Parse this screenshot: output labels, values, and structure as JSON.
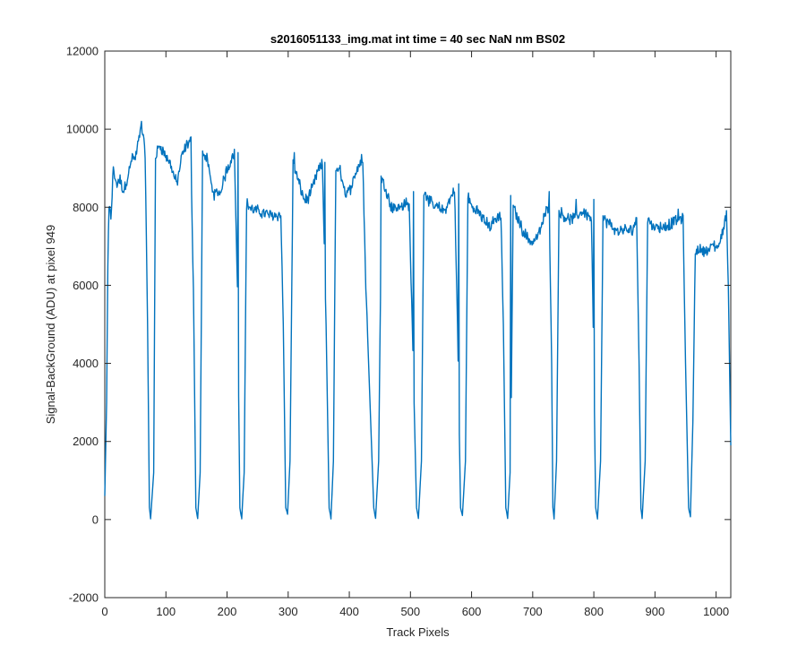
{
  "chart_data": {
    "type": "line",
    "title": "s2016051133_img.mat int time = 40 sec  NaN nm BS02",
    "xlabel": "Track Pixels",
    "ylabel": "Signal-BackGround (ADU) at pixel 949",
    "xlim": [
      0,
      1024
    ],
    "ylim": [
      -2000,
      12000
    ],
    "xticks": [
      0,
      100,
      200,
      300,
      400,
      500,
      600,
      700,
      800,
      900,
      1000
    ],
    "yticks": [
      -2000,
      0,
      2000,
      4000,
      6000,
      8000,
      10000,
      12000
    ],
    "grid": false,
    "line_color": "#0072BD",
    "segments": [
      {
        "start": 0,
        "end": 75,
        "levels": [
          [
            0,
            600
          ],
          [
            3,
            3000
          ],
          [
            5,
            6500
          ],
          [
            7,
            8000
          ],
          [
            10,
            7700
          ],
          [
            14,
            9000
          ],
          [
            18,
            8600
          ],
          [
            25,
            8700
          ],
          [
            30,
            8400
          ],
          [
            38,
            8800
          ],
          [
            45,
            9300
          ],
          [
            50,
            9200
          ],
          [
            55,
            9700
          ],
          [
            60,
            10100
          ],
          [
            66,
            9400
          ],
          [
            70,
            5000
          ],
          [
            73,
            300
          ],
          [
            75,
            30
          ]
        ]
      },
      {
        "start": 75,
        "end": 152,
        "levels": [
          [
            75,
            30
          ],
          [
            80,
            1200
          ],
          [
            83,
            9300
          ],
          [
            90,
            9600
          ],
          [
            100,
            9300
          ],
          [
            108,
            9100
          ],
          [
            113,
            8800
          ],
          [
            118,
            8600
          ],
          [
            126,
            9300
          ],
          [
            134,
            9600
          ],
          [
            140,
            9700
          ],
          [
            145,
            6000
          ],
          [
            149,
            300
          ],
          [
            152,
            30
          ]
        ]
      },
      {
        "start": 152,
        "end": 224,
        "levels": [
          [
            152,
            30
          ],
          [
            156,
            1200
          ],
          [
            160,
            9400
          ],
          [
            168,
            9200
          ],
          [
            174,
            8600
          ],
          [
            180,
            8300
          ],
          [
            190,
            8400
          ],
          [
            198,
            8900
          ],
          [
            206,
            9200
          ],
          [
            212,
            9400
          ],
          [
            217,
            6000
          ],
          [
            221,
            300
          ],
          [
            224,
            30
          ]
        ]
      },
      {
        "start": 224,
        "end": 299,
        "levels": [
          [
            224,
            30
          ],
          [
            228,
            1200
          ],
          [
            232,
            8100
          ],
          [
            240,
            7950
          ],
          [
            250,
            7900
          ],
          [
            260,
            7850
          ],
          [
            270,
            7800
          ],
          [
            280,
            7800
          ],
          [
            288,
            7800
          ],
          [
            292,
            5000
          ],
          [
            296,
            300
          ],
          [
            299,
            150
          ]
        ]
      },
      {
        "start": 299,
        "end": 370,
        "levels": [
          [
            299,
            150
          ],
          [
            303,
            1500
          ],
          [
            308,
            9100
          ],
          [
            314,
            8800
          ],
          [
            320,
            8500
          ],
          [
            326,
            8200
          ],
          [
            332,
            8200
          ],
          [
            340,
            8500
          ],
          [
            348,
            8900
          ],
          [
            356,
            9100
          ],
          [
            362,
            5000
          ],
          [
            367,
            300
          ],
          [
            370,
            30
          ]
        ]
      },
      {
        "start": 370,
        "end": 443,
        "levels": [
          [
            370,
            30
          ],
          [
            374,
            1500
          ],
          [
            378,
            9000
          ],
          [
            386,
            8900
          ],
          [
            394,
            8300
          ],
          [
            400,
            8400
          ],
          [
            408,
            8800
          ],
          [
            416,
            9100
          ],
          [
            422,
            9200
          ],
          [
            427,
            6000
          ],
          [
            440,
            300
          ],
          [
            443,
            30
          ]
        ]
      },
      {
        "start": 443,
        "end": 513,
        "levels": [
          [
            443,
            30
          ],
          [
            448,
            1500
          ],
          [
            453,
            8700
          ],
          [
            460,
            8500
          ],
          [
            468,
            8000
          ],
          [
            476,
            8000
          ],
          [
            484,
            8000
          ],
          [
            492,
            8100
          ],
          [
            498,
            8000
          ],
          [
            503,
            5000
          ],
          [
            510,
            300
          ],
          [
            513,
            30
          ]
        ]
      },
      {
        "start": 513,
        "end": 585,
        "levels": [
          [
            513,
            30
          ],
          [
            518,
            1500
          ],
          [
            522,
            8400
          ],
          [
            530,
            8200
          ],
          [
            538,
            8000
          ],
          [
            545,
            8000
          ],
          [
            555,
            7900
          ],
          [
            565,
            8200
          ],
          [
            572,
            8500
          ],
          [
            577,
            5000
          ],
          [
            582,
            300
          ],
          [
            585,
            100
          ]
        ]
      },
      {
        "start": 585,
        "end": 659,
        "levels": [
          [
            585,
            100
          ],
          [
            590,
            1500
          ],
          [
            594,
            8300
          ],
          [
            600,
            8000
          ],
          [
            610,
            7900
          ],
          [
            620,
            7700
          ],
          [
            630,
            7500
          ],
          [
            640,
            7700
          ],
          [
            648,
            7800
          ],
          [
            652,
            5000
          ],
          [
            656,
            300
          ],
          [
            659,
            30
          ]
        ]
      },
      {
        "start": 659,
        "end": 735,
        "levels": [
          [
            659,
            30
          ],
          [
            664,
            1500
          ],
          [
            668,
            8000
          ],
          [
            676,
            7700
          ],
          [
            684,
            7400
          ],
          [
            692,
            7200
          ],
          [
            700,
            7100
          ],
          [
            710,
            7300
          ],
          [
            720,
            7800
          ],
          [
            727,
            8100
          ],
          [
            731,
            4000
          ],
          [
            733,
            300
          ],
          [
            735,
            30
          ]
        ]
      },
      {
        "start": 735,
        "end": 806,
        "levels": [
          [
            735,
            30
          ],
          [
            739,
            1500
          ],
          [
            743,
            7900
          ],
          [
            750,
            7800
          ],
          [
            758,
            7700
          ],
          [
            766,
            7700
          ],
          [
            774,
            7800
          ],
          [
            782,
            7900
          ],
          [
            790,
            7800
          ],
          [
            796,
            7700
          ],
          [
            800,
            4000
          ],
          [
            803,
            300
          ],
          [
            806,
            30
          ]
        ]
      },
      {
        "start": 806,
        "end": 879,
        "levels": [
          [
            806,
            30
          ],
          [
            811,
            1500
          ],
          [
            815,
            7700
          ],
          [
            824,
            7600
          ],
          [
            834,
            7400
          ],
          [
            844,
            7400
          ],
          [
            854,
            7400
          ],
          [
            862,
            7400
          ],
          [
            870,
            7700
          ],
          [
            874,
            4000
          ],
          [
            877,
            300
          ],
          [
            879,
            30
          ]
        ]
      },
      {
        "start": 879,
        "end": 958,
        "levels": [
          [
            879,
            30
          ],
          [
            884,
            1500
          ],
          [
            888,
            7700
          ],
          [
            898,
            7500
          ],
          [
            908,
            7500
          ],
          [
            918,
            7500
          ],
          [
            928,
            7600
          ],
          [
            938,
            7700
          ],
          [
            946,
            7700
          ],
          [
            950,
            4000
          ],
          [
            955,
            300
          ],
          [
            958,
            80
          ]
        ]
      },
      {
        "start": 958,
        "end": 1024,
        "levels": [
          [
            958,
            80
          ],
          [
            962,
            2500
          ],
          [
            966,
            6900
          ],
          [
            975,
            6900
          ],
          [
            985,
            6900
          ],
          [
            995,
            7000
          ],
          [
            1005,
            7000
          ],
          [
            1012,
            7500
          ],
          [
            1017,
            7800
          ],
          [
            1020,
            6000
          ],
          [
            1024,
            1900
          ]
        ]
      }
    ],
    "noise_amplitude": 120,
    "spikes": [
      [
        60,
        10200
      ],
      [
        141,
        9800
      ],
      [
        218,
        9400
      ],
      [
        310,
        9400
      ],
      [
        360,
        9150
      ],
      [
        420,
        9350
      ],
      [
        452,
        8800
      ],
      [
        505,
        8400
      ],
      [
        528,
        8300
      ],
      [
        579,
        8600
      ],
      [
        664,
        8300
      ],
      [
        727,
        8400
      ],
      [
        771,
        8200
      ],
      [
        800,
        8200
      ],
      [
        938,
        7950
      ]
    ]
  }
}
